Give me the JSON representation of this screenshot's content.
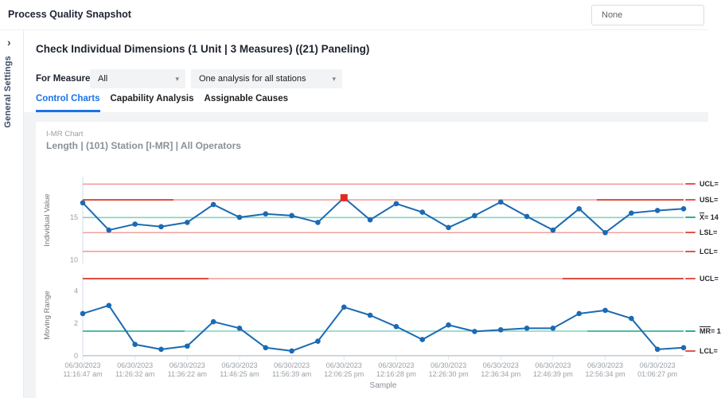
{
  "header": {
    "title": "Process Quality Snapshot",
    "action_label": "None"
  },
  "sidebar": {
    "label": "General Settings"
  },
  "icons": {
    "sidebar_collapse": "›",
    "dropdown_arrow": "▾"
  },
  "controls": {
    "subtitle": "Check Individual Dimensions (1 Unit | 3 Measures) ((21) Paneling)",
    "for_measure_label": "For Measure:",
    "measure_value": "All",
    "analysis_value": "One analysis for all stations"
  },
  "tabs": [
    {
      "label": "Control Charts",
      "active": true
    },
    {
      "label": "Capability Analysis",
      "active": false
    },
    {
      "label": "Assignable Causes",
      "active": false
    }
  ],
  "chart_header": {
    "kind": "I-MR Chart",
    "title": "Length | (101) Station [I-MR] | All Operators"
  },
  "chart_data": [
    {
      "type": "line",
      "name": "individual-value-chart",
      "ylabel": "Individual Value",
      "yticks": [
        15,
        10
      ],
      "ylim": [
        9.6,
        19.5
      ],
      "grid": false,
      "series_color": "#1b6ab2",
      "values": [
        16.7,
        13.5,
        14.2,
        13.9,
        14.4,
        16.5,
        15.0,
        15.4,
        15.2,
        14.4,
        17.3,
        14.7,
        16.6,
        15.6,
        13.8,
        15.2,
        16.8,
        15.1,
        13.5,
        16.0,
        13.2,
        15.5,
        15.8,
        16.0
      ],
      "out_of_control_index": 10,
      "reference_lines": [
        {
          "overlined": "",
          "label": "UCL=",
          "value": 18.9,
          "color": "red"
        },
        {
          "overlined": "",
          "label": "USL=",
          "value": 17.05,
          "color": "red"
        },
        {
          "overlined": "X",
          "label": "= 14",
          "value": 14.97,
          "color": "teal"
        },
        {
          "overlined": "",
          "label": "LSL=",
          "value": 13.2,
          "color": "red"
        },
        {
          "overlined": "",
          "label": "LCL=",
          "value": 11.0,
          "color": "red"
        }
      ]
    },
    {
      "type": "line",
      "name": "moving-range-chart",
      "ylabel": "Moving Range",
      "yticks": [
        4,
        2,
        0
      ],
      "ylim": [
        0,
        5.0
      ],
      "grid": false,
      "series_color": "#1b6ab2",
      "values": [
        2.6,
        3.1,
        0.7,
        0.4,
        0.6,
        2.1,
        1.7,
        0.5,
        0.3,
        0.9,
        3.0,
        2.5,
        1.8,
        1.0,
        1.9,
        1.5,
        1.6,
        1.7,
        1.7,
        2.6,
        2.8,
        2.3,
        0.4,
        0.5
      ],
      "reference_lines": [
        {
          "overlined": "",
          "label": "UCL=",
          "value": 4.75,
          "color": "red"
        },
        {
          "overlined": "MR",
          "label": "= 1",
          "value": 1.52,
          "color": "teal"
        },
        {
          "overlined": "",
          "label": "LCL=",
          "value": 0,
          "color": "red"
        }
      ]
    }
  ],
  "x_axis": {
    "title": "Sample",
    "labels": [
      {
        "date": "06/30/2023",
        "time": "11:16:47 am"
      },
      {
        "date": "06/30/2023",
        "time": "11:26:32 am"
      },
      {
        "date": "06/30/2023",
        "time": "11:36:22 am"
      },
      {
        "date": "06/30/2023",
        "time": "11:46:25 am"
      },
      {
        "date": "06/30/2023",
        "time": "11:56:39 am"
      },
      {
        "date": "06/30/2023",
        "time": "12:06:25 pm"
      },
      {
        "date": "06/30/2023",
        "time": "12:16:28 pm"
      },
      {
        "date": "06/30/2023",
        "time": "12:26:30 pm"
      },
      {
        "date": "06/30/2023",
        "time": "12:36:34 pm"
      },
      {
        "date": "06/30/2023",
        "time": "12:46:39 pm"
      },
      {
        "date": "06/30/2023",
        "time": "12:56:34 pm"
      },
      {
        "date": "06/30/2023",
        "time": "01:06:27 pm"
      }
    ]
  },
  "colors": {
    "series_blue": "#1b6ab2",
    "limit_red_light": "#f2a19c",
    "limit_red_dark": "#d93025",
    "center_teal_light": "#7fd4c0",
    "center_teal_dark": "#2bb092",
    "out_marker_red": "#e02b20",
    "tab_active_blue": "#1a73e8"
  }
}
